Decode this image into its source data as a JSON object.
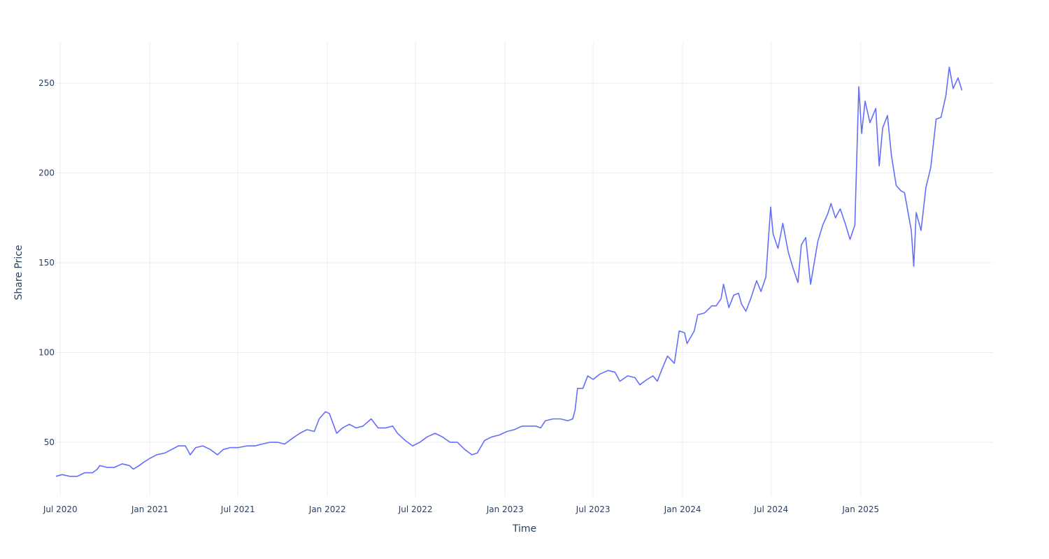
{
  "chart_data": {
    "type": "line",
    "title": "",
    "xlabel": "Time",
    "ylabel": "Share Price",
    "x_range": [
      "2020-06-22",
      "2025-09-30"
    ],
    "y_range": [
      20,
      273
    ],
    "grid": true,
    "legend": "none",
    "x_ticks": [
      {
        "date": "2020-07-01",
        "label": "Jul 2020"
      },
      {
        "date": "2021-01-01",
        "label": "Jan 2021"
      },
      {
        "date": "2021-07-01",
        "label": "Jul 2021"
      },
      {
        "date": "2022-01-01",
        "label": "Jan 2022"
      },
      {
        "date": "2022-07-01",
        "label": "Jul 2022"
      },
      {
        "date": "2023-01-01",
        "label": "Jan 2023"
      },
      {
        "date": "2023-07-01",
        "label": "Jul 2023"
      },
      {
        "date": "2024-01-01",
        "label": "Jan 2024"
      },
      {
        "date": "2024-07-01",
        "label": "Jul 2024"
      },
      {
        "date": "2025-01-01",
        "label": "Jan 2025"
      }
    ],
    "y_ticks": [
      {
        "value": 50,
        "label": "50"
      },
      {
        "value": 100,
        "label": "100"
      },
      {
        "value": 150,
        "label": "150"
      },
      {
        "value": 200,
        "label": "200"
      },
      {
        "value": 250,
        "label": "250"
      }
    ],
    "series": [
      {
        "color": "#636efa",
        "points": [
          [
            "2020-06-22",
            31
          ],
          [
            "2020-07-05",
            32
          ],
          [
            "2020-07-20",
            31
          ],
          [
            "2020-08-05",
            31
          ],
          [
            "2020-08-20",
            33
          ],
          [
            "2020-09-05",
            33
          ],
          [
            "2020-09-15",
            35
          ],
          [
            "2020-09-20",
            37
          ],
          [
            "2020-10-05",
            36
          ],
          [
            "2020-10-20",
            36
          ],
          [
            "2020-11-05",
            38
          ],
          [
            "2020-11-20",
            37
          ],
          [
            "2020-11-28",
            35
          ],
          [
            "2020-12-10",
            37
          ],
          [
            "2020-12-20",
            39
          ],
          [
            "2021-01-01",
            41
          ],
          [
            "2021-01-15",
            43
          ],
          [
            "2021-02-01",
            44
          ],
          [
            "2021-02-15",
            46
          ],
          [
            "2021-03-01",
            48
          ],
          [
            "2021-03-15",
            48
          ],
          [
            "2021-03-25",
            43
          ],
          [
            "2021-04-05",
            47
          ],
          [
            "2021-04-20",
            48
          ],
          [
            "2021-05-05",
            46
          ],
          [
            "2021-05-20",
            43
          ],
          [
            "2021-06-01",
            46
          ],
          [
            "2021-06-15",
            47
          ],
          [
            "2021-07-01",
            47
          ],
          [
            "2021-07-20",
            48
          ],
          [
            "2021-08-05",
            48
          ],
          [
            "2021-08-20",
            49
          ],
          [
            "2021-09-05",
            50
          ],
          [
            "2021-09-20",
            50
          ],
          [
            "2021-10-05",
            49
          ],
          [
            "2021-10-20",
            52
          ],
          [
            "2021-11-05",
            55
          ],
          [
            "2021-11-20",
            57
          ],
          [
            "2021-12-05",
            56
          ],
          [
            "2021-12-15",
            63
          ],
          [
            "2021-12-28",
            67
          ],
          [
            "2022-01-05",
            66
          ],
          [
            "2022-01-20",
            55
          ],
          [
            "2022-02-01",
            58
          ],
          [
            "2022-02-15",
            60
          ],
          [
            "2022-03-01",
            58
          ],
          [
            "2022-03-15",
            59
          ],
          [
            "2022-04-01",
            63
          ],
          [
            "2022-04-15",
            58
          ],
          [
            "2022-05-01",
            58
          ],
          [
            "2022-05-15",
            59
          ],
          [
            "2022-05-25",
            55
          ],
          [
            "2022-06-10",
            51
          ],
          [
            "2022-06-25",
            48
          ],
          [
            "2022-07-10",
            50
          ],
          [
            "2022-07-25",
            53
          ],
          [
            "2022-08-10",
            55
          ],
          [
            "2022-08-25",
            53
          ],
          [
            "2022-09-10",
            50
          ],
          [
            "2022-09-25",
            50
          ],
          [
            "2022-10-10",
            46
          ],
          [
            "2022-10-25",
            43
          ],
          [
            "2022-11-05",
            44
          ],
          [
            "2022-11-20",
            51
          ],
          [
            "2022-12-05",
            53
          ],
          [
            "2022-12-20",
            54
          ],
          [
            "2023-01-05",
            56
          ],
          [
            "2023-01-20",
            57
          ],
          [
            "2023-02-05",
            59
          ],
          [
            "2023-02-20",
            59
          ],
          [
            "2023-03-05",
            59
          ],
          [
            "2023-03-15",
            58
          ],
          [
            "2023-03-25",
            62
          ],
          [
            "2023-04-10",
            63
          ],
          [
            "2023-04-25",
            63
          ],
          [
            "2023-05-10",
            62
          ],
          [
            "2023-05-20",
            63
          ],
          [
            "2023-05-25",
            68
          ],
          [
            "2023-05-30",
            80
          ],
          [
            "2023-06-10",
            80
          ],
          [
            "2023-06-20",
            87
          ],
          [
            "2023-07-01",
            85
          ],
          [
            "2023-07-15",
            88
          ],
          [
            "2023-08-01",
            90
          ],
          [
            "2023-08-15",
            89
          ],
          [
            "2023-08-25",
            84
          ],
          [
            "2023-09-10",
            87
          ],
          [
            "2023-09-25",
            86
          ],
          [
            "2023-10-05",
            82
          ],
          [
            "2023-10-20",
            85
          ],
          [
            "2023-11-01",
            87
          ],
          [
            "2023-11-10",
            84
          ],
          [
            "2023-11-20",
            91
          ],
          [
            "2023-12-01",
            98
          ],
          [
            "2023-12-15",
            94
          ],
          [
            "2023-12-25",
            112
          ],
          [
            "2024-01-05",
            111
          ],
          [
            "2024-01-10",
            105
          ],
          [
            "2024-01-25",
            112
          ],
          [
            "2024-02-01",
            121
          ],
          [
            "2024-02-15",
            122
          ],
          [
            "2024-03-01",
            126
          ],
          [
            "2024-03-10",
            126
          ],
          [
            "2024-03-20",
            130
          ],
          [
            "2024-03-25",
            138
          ],
          [
            "2024-04-05",
            125
          ],
          [
            "2024-04-15",
            132
          ],
          [
            "2024-04-25",
            133
          ],
          [
            "2024-05-01",
            127
          ],
          [
            "2024-05-10",
            123
          ],
          [
            "2024-05-20",
            130
          ],
          [
            "2024-06-01",
            140
          ],
          [
            "2024-06-10",
            134
          ],
          [
            "2024-06-20",
            142
          ],
          [
            "2024-06-25",
            162
          ],
          [
            "2024-06-30",
            181
          ],
          [
            "2024-07-05",
            166
          ],
          [
            "2024-07-15",
            158
          ],
          [
            "2024-07-25",
            172
          ],
          [
            "2024-08-05",
            156
          ],
          [
            "2024-08-15",
            147
          ],
          [
            "2024-08-25",
            139
          ],
          [
            "2024-09-01",
            160
          ],
          [
            "2024-09-10",
            164
          ],
          [
            "2024-09-20",
            138
          ],
          [
            "2024-10-05",
            162
          ],
          [
            "2024-10-15",
            171
          ],
          [
            "2024-10-25",
            177
          ],
          [
            "2024-11-01",
            183
          ],
          [
            "2024-11-10",
            175
          ],
          [
            "2024-11-20",
            180
          ],
          [
            "2024-11-30",
            172
          ],
          [
            "2024-12-10",
            163
          ],
          [
            "2024-12-20",
            171
          ],
          [
            "2024-12-28",
            248
          ],
          [
            "2025-01-03",
            222
          ],
          [
            "2025-01-10",
            240
          ],
          [
            "2025-01-20",
            228
          ],
          [
            "2025-02-01",
            236
          ],
          [
            "2025-02-08",
            204
          ],
          [
            "2025-02-15",
            225
          ],
          [
            "2025-02-25",
            232
          ],
          [
            "2025-03-05",
            210
          ],
          [
            "2025-03-15",
            193
          ],
          [
            "2025-03-25",
            190
          ],
          [
            "2025-04-01",
            189
          ],
          [
            "2025-04-15",
            168
          ],
          [
            "2025-04-20",
            148
          ],
          [
            "2025-04-25",
            178
          ],
          [
            "2025-05-05",
            168
          ],
          [
            "2025-05-15",
            192
          ],
          [
            "2025-05-25",
            203
          ],
          [
            "2025-06-05",
            230
          ],
          [
            "2025-06-15",
            231
          ],
          [
            "2025-06-25",
            243
          ],
          [
            "2025-07-02",
            259
          ],
          [
            "2025-07-10",
            247
          ],
          [
            "2025-07-20",
            253
          ],
          [
            "2025-07-28",
            246
          ]
        ]
      }
    ]
  }
}
